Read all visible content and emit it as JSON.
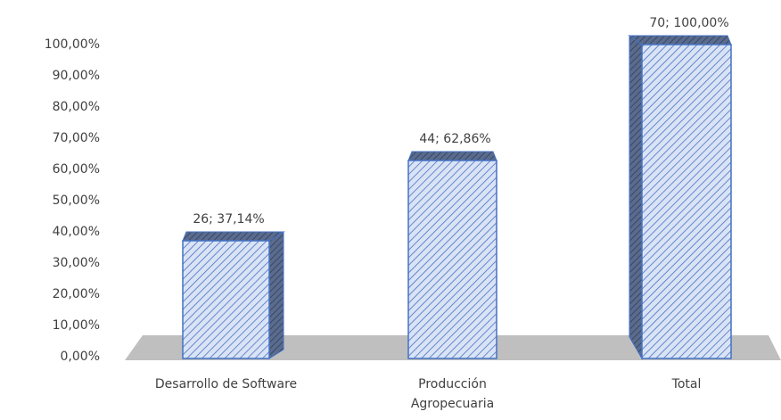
{
  "chart_data": {
    "type": "bar3d",
    "categories": [
      "Desarrollo de Software",
      "Producción Agropecuaria",
      "Total"
    ],
    "values": [
      37.14,
      62.86,
      100
    ],
    "value_labels": [
      "26; 37,14%",
      "44; 62,86%",
      "70; 100,00%"
    ],
    "color": "#4472c4",
    "ylim": [
      0,
      100
    ],
    "yticks": [
      {
        "value": 0,
        "label": "0,00%"
      },
      {
        "value": 10,
        "label": "10,00%"
      },
      {
        "value": 20,
        "label": "20,00%"
      },
      {
        "value": 30,
        "label": "30,00%"
      },
      {
        "value": 40,
        "label": "40,00%"
      },
      {
        "value": 50,
        "label": "50,00%"
      },
      {
        "value": 60,
        "label": "60,00%"
      },
      {
        "value": 70,
        "label": "70,00%"
      },
      {
        "value": 80,
        "label": "80,00%"
      },
      {
        "value": 90,
        "label": "90,00%"
      },
      {
        "value": 100,
        "label": "100,00%"
      }
    ]
  }
}
